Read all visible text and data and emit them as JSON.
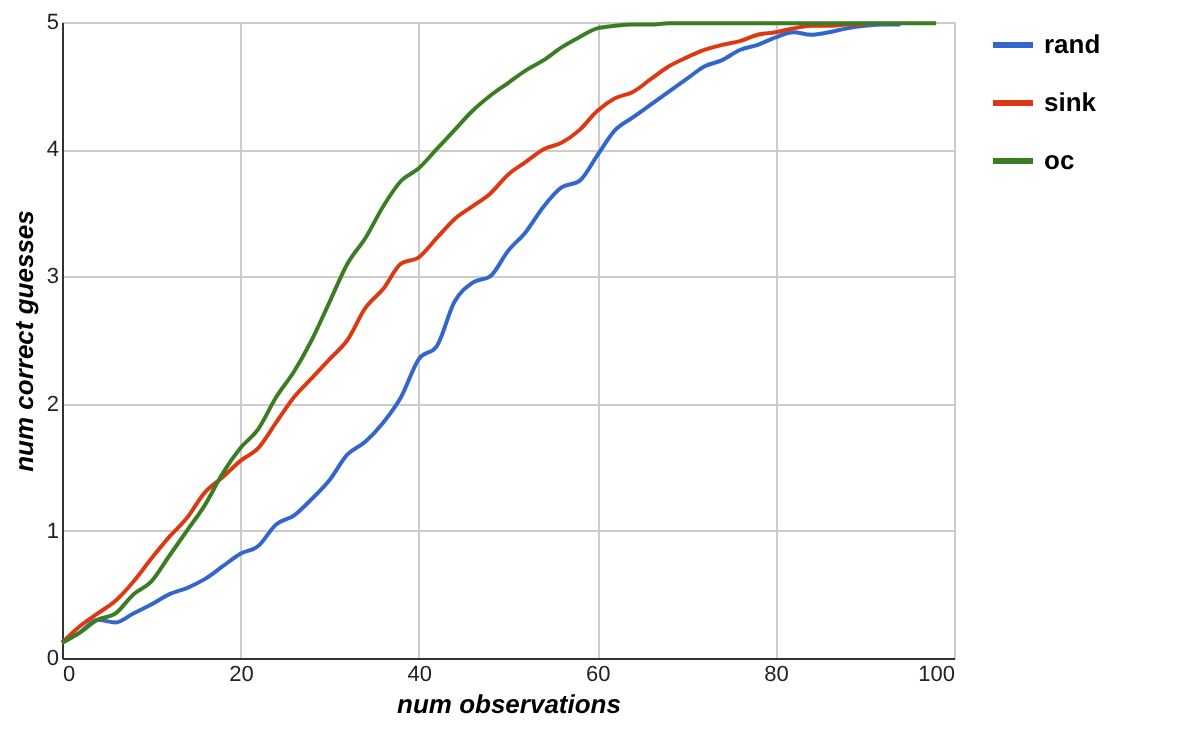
{
  "chart_data": {
    "type": "line",
    "xlabel": "num observations",
    "ylabel": "num correct guesses",
    "x": [
      0,
      2,
      4,
      6,
      8,
      10,
      12,
      14,
      16,
      18,
      20,
      22,
      24,
      26,
      28,
      30,
      32,
      34,
      36,
      38,
      40,
      42,
      44,
      46,
      48,
      50,
      52,
      54,
      56,
      58,
      60,
      62,
      64,
      66,
      68,
      70,
      72,
      74,
      76,
      78,
      80,
      82,
      84,
      86,
      88,
      90,
      92,
      94,
      96,
      98
    ],
    "series": [
      {
        "name": "rand",
        "color": "#3366cc",
        "values": [
          0.12,
          0.2,
          0.3,
          0.28,
          0.35,
          0.42,
          0.5,
          0.55,
          0.62,
          0.72,
          0.82,
          0.88,
          1.05,
          1.12,
          1.25,
          1.4,
          1.6,
          1.7,
          1.85,
          2.05,
          2.35,
          2.45,
          2.8,
          2.95,
          3.0,
          3.2,
          3.35,
          3.55,
          3.7,
          3.75,
          3.95,
          4.15,
          4.25,
          4.35,
          4.45,
          4.55,
          4.65,
          4.7,
          4.78,
          4.82,
          4.88,
          4.92,
          4.9,
          4.92,
          4.95,
          4.97,
          4.98,
          4.98,
          null,
          null
        ]
      },
      {
        "name": "sink",
        "color": "#dc3912",
        "values": [
          0.12,
          0.25,
          0.35,
          0.45,
          0.6,
          0.78,
          0.95,
          1.1,
          1.3,
          1.42,
          1.55,
          1.65,
          1.85,
          2.05,
          2.2,
          2.35,
          2.5,
          2.75,
          2.9,
          3.1,
          3.15,
          3.3,
          3.45,
          3.55,
          3.65,
          3.8,
          3.9,
          4.0,
          4.05,
          4.15,
          4.3,
          4.4,
          4.45,
          4.55,
          4.65,
          4.72,
          4.78,
          4.82,
          4.85,
          4.9,
          4.92,
          4.95,
          4.97,
          4.97,
          4.98,
          4.98,
          null,
          null,
          null,
          null
        ]
      },
      {
        "name": "oc",
        "color": "#3b7d23",
        "values": [
          0.12,
          0.2,
          0.3,
          0.35,
          0.5,
          0.6,
          0.8,
          1.0,
          1.2,
          1.45,
          1.65,
          1.8,
          2.05,
          2.25,
          2.5,
          2.8,
          3.1,
          3.3,
          3.55,
          3.75,
          3.85,
          4.0,
          4.15,
          4.3,
          4.42,
          4.52,
          4.62,
          4.7,
          4.8,
          4.88,
          4.95,
          4.97,
          4.98,
          4.98,
          4.99,
          4.99,
          4.99,
          4.99,
          4.99,
          4.99,
          4.99,
          4.99,
          4.99,
          4.99,
          4.99,
          4.99,
          4.99,
          4.99,
          4.99,
          4.99
        ]
      }
    ],
    "xlim": [
      0,
      100
    ],
    "xticks": [
      0,
      20,
      40,
      60,
      80,
      100
    ],
    "ylim": [
      0,
      5
    ],
    "yticks": [
      0,
      1,
      2,
      3,
      4,
      5
    ],
    "grid": true,
    "legend": "top right",
    "marker": "none",
    "line_style": "solid"
  }
}
